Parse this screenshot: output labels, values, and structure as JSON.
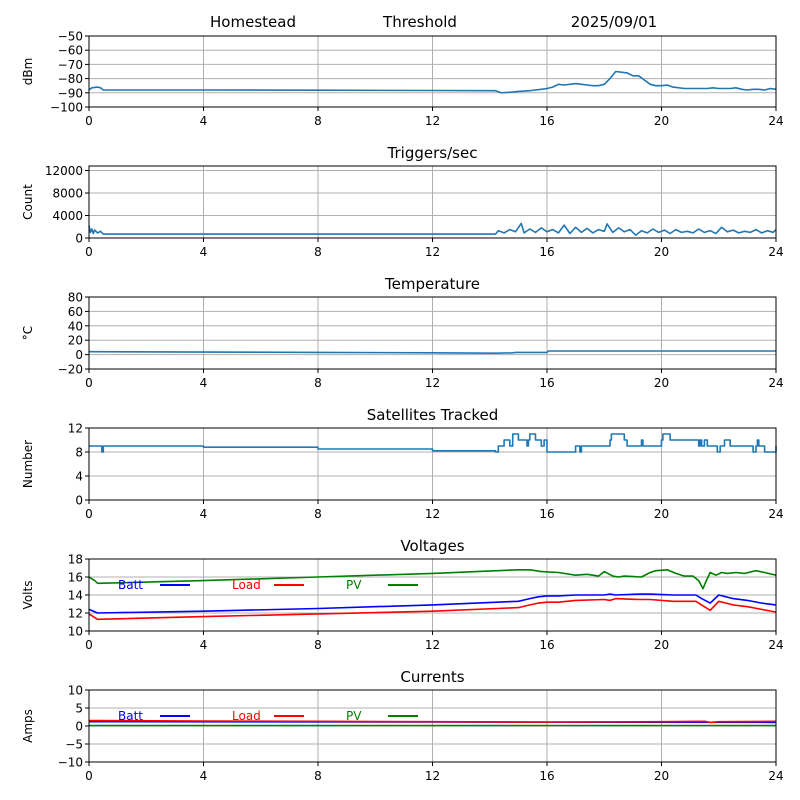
{
  "header": {
    "left": "Homestead",
    "center": "Threshold",
    "right": "2025/09/01"
  },
  "colors": {
    "series": "#1f77b4",
    "batt": "#0000ff",
    "load": "#ff0000",
    "pv": "#008000",
    "grid": "#b0b0b0"
  },
  "chart_data": [
    {
      "type": "line",
      "title": "",
      "xlabel": "",
      "ylabel": "dBm",
      "xlim": [
        0,
        24
      ],
      "ylim": [
        -100,
        -50
      ],
      "xticks": [
        0,
        4,
        8,
        12,
        16,
        20,
        24
      ],
      "yticks": [
        -100,
        -90,
        -80,
        -70,
        -60,
        -50
      ],
      "ytick_labels": [
        "−100",
        "−90",
        "−80",
        "−70",
        "−60",
        "−50"
      ],
      "grid": true,
      "series": [
        {
          "color": "#1f77b4",
          "x": [
            0,
            0.1,
            0.3,
            0.4,
            0.5,
            4,
            8,
            12,
            14.2,
            14.4,
            14.8,
            15,
            15.4,
            15.6,
            15.8,
            16,
            16.2,
            16.4,
            16.6,
            16.8,
            17,
            17.2,
            17.4,
            17.6,
            17.8,
            18,
            18.2,
            18.4,
            18.6,
            18.8,
            19,
            19.2,
            19.4,
            19.6,
            19.8,
            20,
            20.2,
            20.4,
            20.8,
            21,
            21.4,
            21.6,
            21.8,
            22,
            22.2,
            22.4,
            22.6,
            22.8,
            23,
            23.2,
            23.4,
            23.6,
            23.8,
            24
          ],
          "y": [
            -88,
            -86.5,
            -86,
            -86.5,
            -88,
            -88,
            -88.2,
            -88.4,
            -88.5,
            -90,
            -89.5,
            -89,
            -88.5,
            -88,
            -87.5,
            -87,
            -86,
            -84,
            -84.5,
            -84,
            -83.5,
            -84,
            -84.5,
            -85,
            -85,
            -84,
            -80,
            -75,
            -75.5,
            -76,
            -78,
            -78,
            -81,
            -84,
            -85,
            -85,
            -84.5,
            -86,
            -87,
            -87,
            -87,
            -87,
            -86.5,
            -87,
            -87,
            -87,
            -86.5,
            -87.5,
            -88,
            -87.5,
            -87.5,
            -88,
            -87,
            -87.5
          ]
        }
      ]
    },
    {
      "type": "line",
      "title": "Triggers/sec",
      "xlabel": "",
      "ylabel": "Count",
      "xlim": [
        0,
        24
      ],
      "ylim": [
        0,
        12800
      ],
      "xticks": [
        0,
        4,
        8,
        12,
        16,
        20,
        24
      ],
      "yticks": [
        0,
        4000,
        8000,
        12000
      ],
      "ytick_labels": [
        "0",
        "4000",
        "8000",
        "12000"
      ],
      "grid": true,
      "series": [
        {
          "color": "#1f77b4",
          "x": [
            0,
            0.05,
            0.1,
            0.15,
            0.2,
            0.3,
            0.4,
            0.5,
            4,
            8,
            12,
            14.2,
            14.3,
            14.5,
            14.7,
            14.9,
            15.1,
            15.2,
            15.4,
            15.6,
            15.8,
            16,
            16.2,
            16.4,
            16.6,
            16.8,
            17,
            17.2,
            17.4,
            17.6,
            17.8,
            18,
            18.1,
            18.3,
            18.5,
            18.7,
            18.9,
            19.1,
            19.3,
            19.5,
            19.7,
            19.9,
            20.1,
            20.3,
            20.5,
            20.7,
            20.9,
            21.1,
            21.3,
            21.5,
            21.7,
            21.9,
            22.1,
            22.3,
            22.5,
            22.7,
            22.9,
            23.1,
            23.3,
            23.5,
            23.7,
            23.9,
            24
          ],
          "y": [
            2200,
            1000,
            1600,
            800,
            1400,
            900,
            1200,
            700,
            700,
            700,
            700,
            700,
            1300,
            900,
            1500,
            1100,
            2600,
            900,
            1600,
            1000,
            1800,
            1100,
            1500,
            900,
            2300,
            800,
            1900,
            1000,
            1700,
            900,
            1500,
            1200,
            2500,
            1000,
            1800,
            1100,
            1500,
            500,
            1300,
            900,
            1600,
            1000,
            1400,
            800,
            1500,
            1000,
            1200,
            900,
            1600,
            1000,
            1300,
            800,
            1900,
            1100,
            1400,
            900,
            1200,
            1000,
            1500,
            900,
            1300,
            1000,
            1500
          ]
        }
      ]
    },
    {
      "type": "line",
      "title": "Temperature",
      "xlabel": "",
      "ylabel": "°C",
      "xlim": [
        0,
        24
      ],
      "ylim": [
        -20,
        80
      ],
      "xticks": [
        0,
        4,
        8,
        12,
        16,
        20,
        24
      ],
      "yticks": [
        -20,
        0,
        20,
        40,
        60,
        80
      ],
      "ytick_labels": [
        "−20",
        "0",
        "20",
        "40",
        "60",
        "80"
      ],
      "grid": true,
      "series": [
        {
          "color": "#1f77b4",
          "x": [
            0,
            4,
            8,
            12,
            14.2,
            14.8,
            14.9,
            16,
            16.05,
            20,
            24
          ],
          "y": [
            4,
            3.5,
            3,
            2.5,
            2,
            2.5,
            3,
            3,
            5,
            5,
            5
          ]
        }
      ]
    },
    {
      "type": "line",
      "title": "Satellites Tracked",
      "xlabel": "",
      "ylabel": "Number",
      "xlim": [
        0,
        24
      ],
      "ylim": [
        0,
        12
      ],
      "xticks": [
        0,
        4,
        8,
        12,
        16,
        20,
        24
      ],
      "yticks": [
        0,
        4,
        8,
        12
      ],
      "ytick_labels": [
        "0",
        "4",
        "8",
        "12"
      ],
      "grid": true,
      "step": true,
      "series": [
        {
          "color": "#1f77b4",
          "x": [
            0,
            0.4,
            0.45,
            0.5,
            4,
            8,
            12,
            14.2,
            14.3,
            14.5,
            14.7,
            14.8,
            15,
            15.3,
            15.35,
            15.4,
            15.6,
            15.7,
            15.8,
            15.9,
            16,
            16.2,
            17,
            17.15,
            17.2,
            17.3,
            18,
            18.2,
            18.25,
            18.7,
            18.8,
            19.1,
            19.2,
            19.3,
            19.35,
            19.4,
            19.9,
            20,
            20.05,
            20.3,
            20.5,
            20.8,
            21.3,
            21.35,
            21.4,
            21.5,
            21.6,
            21.7,
            21.8,
            21.9,
            21.95,
            22.05,
            22.2,
            22.4,
            22.8,
            23.2,
            23.3,
            23.35,
            23.4,
            23.6,
            23.8,
            24
          ],
          "y": [
            9,
            9,
            8,
            9,
            8.8,
            8.5,
            8.2,
            8,
            9,
            10,
            9,
            11,
            10,
            9,
            10,
            11,
            10,
            10,
            9,
            10,
            8,
            8,
            9,
            8,
            9,
            9,
            9,
            10,
            11,
            10,
            9,
            9,
            9,
            10,
            9,
            9,
            9,
            10,
            11,
            10,
            10,
            10,
            9,
            10,
            9,
            10,
            9,
            9,
            9,
            9,
            8,
            9,
            10,
            9,
            9,
            8,
            9,
            10,
            9,
            8,
            8,
            9
          ]
        }
      ]
    },
    {
      "type": "line",
      "title": "Voltages",
      "xlabel": "",
      "ylabel": "Volts",
      "xlim": [
        0,
        24
      ],
      "ylim": [
        10,
        18
      ],
      "xticks": [
        0,
        4,
        8,
        12,
        16,
        20,
        24
      ],
      "yticks": [
        10,
        12,
        14,
        16,
        18
      ],
      "ytick_labels": [
        "10",
        "12",
        "14",
        "16",
        "18"
      ],
      "grid": true,
      "legend": "top-left, inline",
      "series": [
        {
          "name": "Batt",
          "color": "#0000ff",
          "x": [
            0,
            0.3,
            4,
            8,
            12,
            15,
            15.4,
            15.7,
            16,
            16.4,
            17,
            18,
            18.2,
            18.4,
            19.2,
            19.6,
            20.4,
            21.2,
            21.4,
            21.7,
            22,
            22.5,
            23,
            23.5,
            24
          ],
          "y": [
            12.4,
            12.0,
            12.2,
            12.5,
            12.9,
            13.3,
            13.6,
            13.8,
            13.9,
            13.9,
            14.0,
            14.0,
            14.1,
            14.0,
            14.1,
            14.1,
            14.0,
            14.0,
            13.6,
            13.1,
            14.0,
            13.6,
            13.4,
            13.1,
            12.9
          ]
        },
        {
          "name": "Load",
          "color": "#ff0000",
          "x": [
            0,
            0.3,
            4,
            8,
            12,
            15,
            15.4,
            15.7,
            16,
            16.4,
            17,
            18,
            18.2,
            18.4,
            19.2,
            19.6,
            20.4,
            21.2,
            21.4,
            21.7,
            22,
            22.5,
            23,
            23.5,
            24
          ],
          "y": [
            11.9,
            11.3,
            11.6,
            11.9,
            12.2,
            12.6,
            12.9,
            13.1,
            13.2,
            13.2,
            13.4,
            13.5,
            13.4,
            13.6,
            13.5,
            13.5,
            13.3,
            13.3,
            12.9,
            12.3,
            13.3,
            12.9,
            12.7,
            12.4,
            12.1
          ]
        },
        {
          "name": "PV",
          "color": "#008000",
          "x": [
            0,
            0.2,
            0.3,
            4,
            8,
            12,
            15,
            15.4,
            15.8,
            16.4,
            17,
            17.4,
            17.8,
            18,
            18.3,
            18.5,
            18.7,
            19.3,
            19.6,
            19.8,
            20.2,
            20.5,
            20.8,
            21.1,
            21.3,
            21.45,
            21.55,
            21.7,
            21.9,
            22.1,
            22.3,
            22.6,
            22.9,
            23.3,
            23.6,
            24
          ],
          "y": [
            16.0,
            15.6,
            15.3,
            15.6,
            16.0,
            16.4,
            16.8,
            16.8,
            16.6,
            16.5,
            16.2,
            16.3,
            16.1,
            16.6,
            16.1,
            16.0,
            16.1,
            16.0,
            16.5,
            16.7,
            16.8,
            16.4,
            16.1,
            16.1,
            15.6,
            14.7,
            15.5,
            16.5,
            16.2,
            16.5,
            16.4,
            16.5,
            16.4,
            16.7,
            16.5,
            16.2
          ]
        }
      ]
    },
    {
      "type": "line",
      "title": "Currents",
      "xlabel": "",
      "ylabel": "Amps",
      "xlim": [
        0,
        24
      ],
      "ylim": [
        -10,
        10
      ],
      "xticks": [
        0,
        4,
        8,
        12,
        16,
        20,
        24
      ],
      "yticks": [
        -10,
        -5,
        0,
        5,
        10
      ],
      "ytick_labels": [
        "−10",
        "−5",
        "0",
        "5",
        "10"
      ],
      "grid": true,
      "legend": "top-left, inline",
      "series": [
        {
          "name": "Batt",
          "color": "#0000ff",
          "x": [
            0,
            24
          ],
          "y": [
            1.2,
            1.0
          ]
        },
        {
          "name": "Load",
          "color": "#ff0000",
          "x": [
            0,
            4,
            8,
            12,
            16,
            20,
            21.5,
            21.7,
            22,
            24
          ],
          "y": [
            1.5,
            1.4,
            1.3,
            1.2,
            1.1,
            1.2,
            1.3,
            1.0,
            1.2,
            1.3
          ]
        },
        {
          "name": "PV",
          "color": "#008000",
          "x": [
            0,
            24
          ],
          "y": [
            0.1,
            0.1
          ]
        }
      ]
    }
  ]
}
